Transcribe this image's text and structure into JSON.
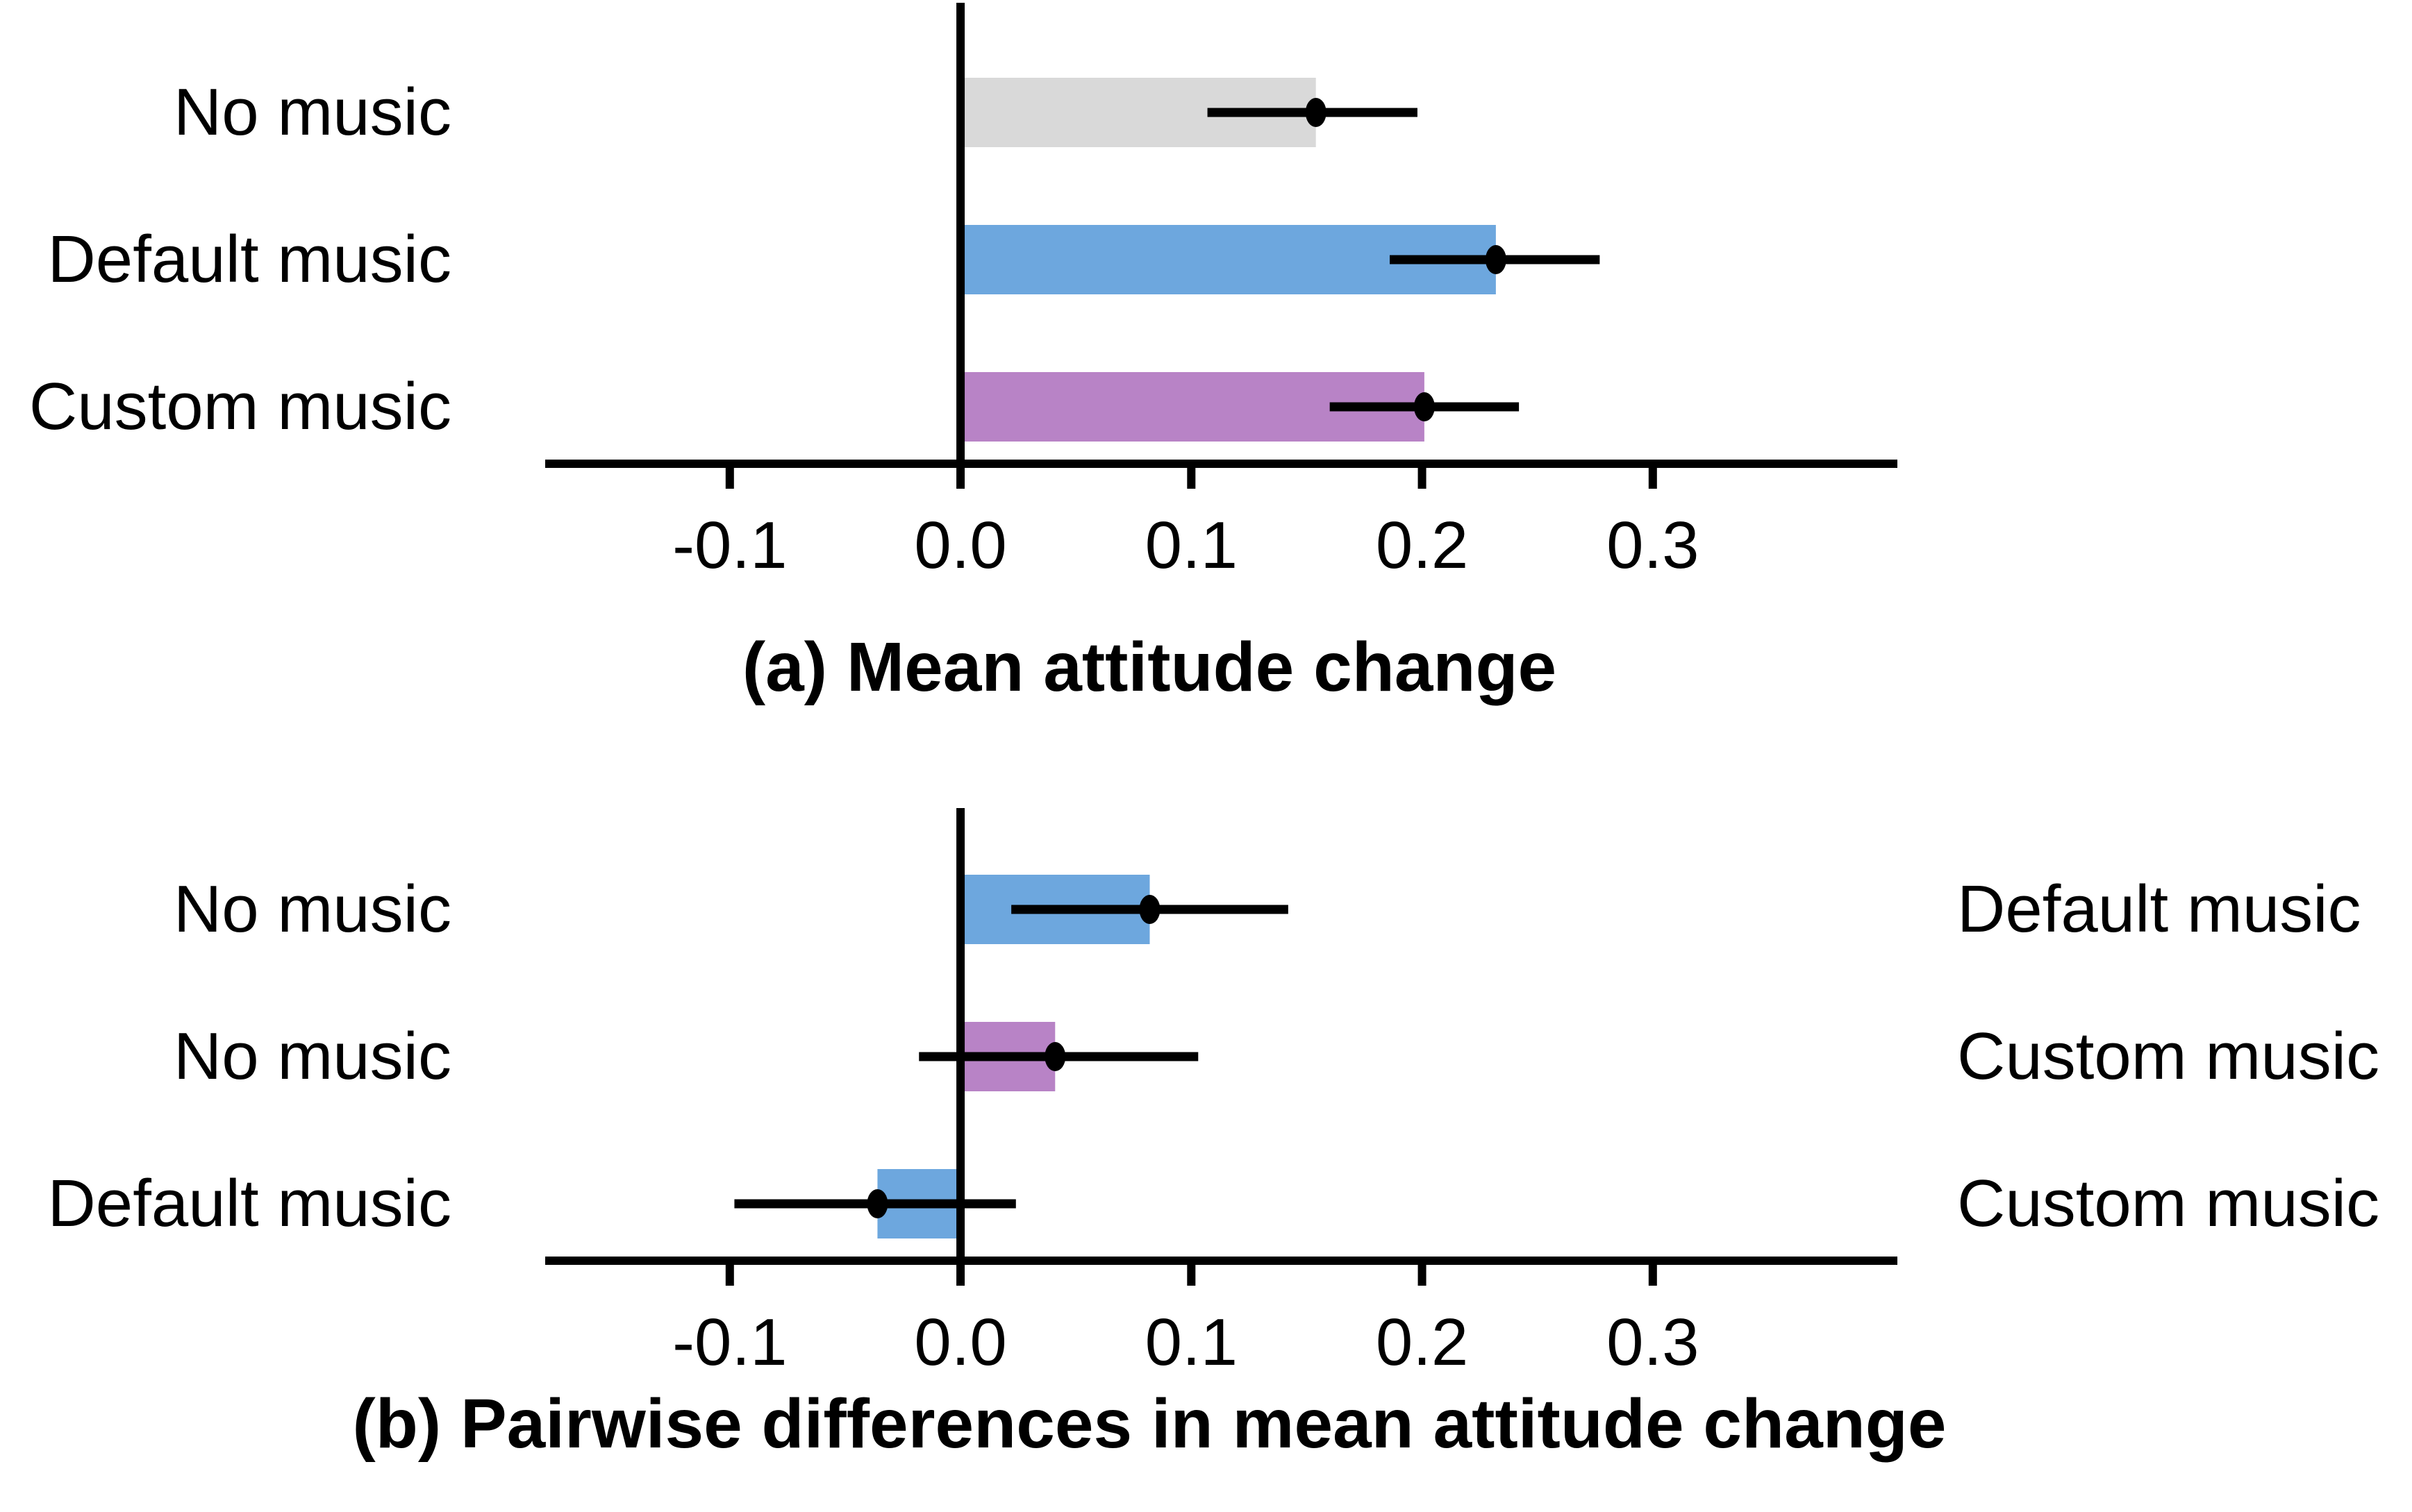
{
  "chart_data": [
    {
      "type": "bar",
      "orientation": "horizontal",
      "title": "(a) Mean attitude change",
      "categories": [
        "No music",
        "Default music",
        "Custom music"
      ],
      "values": [
        0.154,
        0.232,
        0.201
      ],
      "ci_low": [
        0.107,
        0.186,
        0.16
      ],
      "ci_high": [
        0.198,
        0.277,
        0.242
      ],
      "bar_colors": [
        "#D9D9D9",
        "#6DA7DE",
        "#B883C6"
      ],
      "xticks": [
        -0.1,
        0,
        0.1,
        0.2,
        0.3
      ],
      "xtick_labels": [
        "-0.1",
        "0.0",
        "0.1",
        "0.2",
        "0.3"
      ],
      "xlim": [
        -0.18,
        0.406
      ],
      "grid": false,
      "error_bars": true,
      "point_markers": true
    },
    {
      "type": "bar",
      "orientation": "horizontal",
      "title": "(b) Pairwise differences in mean attitude change",
      "categories_left": [
        "No music",
        "No music",
        "Default music"
      ],
      "categories_right": [
        "Default music",
        "Custom music",
        "Custom music"
      ],
      "values": [
        0.082,
        0.041,
        -0.036
      ],
      "ci_low": [
        0.022,
        -0.018,
        -0.098
      ],
      "ci_high": [
        0.142,
        0.103,
        0.024
      ],
      "bar_colors": [
        "#6DA7DE",
        "#B883C6",
        "#6DA7DE"
      ],
      "xticks": [
        -0.1,
        0,
        0.1,
        0.2,
        0.3
      ],
      "xtick_labels": [
        "-0.1",
        "0.0",
        "0.1",
        "0.2",
        "0.3"
      ],
      "xlim": [
        -0.18,
        0.406
      ],
      "grid": false,
      "error_bars": true,
      "point_markers": true
    }
  ],
  "colors": {
    "bar_gray": "#D9D9D9",
    "bar_blue": "#6DA7DE",
    "bar_purple": "#B883C6",
    "axis": "#000000",
    "marker": "#000000",
    "background": "#FFFFFF"
  }
}
